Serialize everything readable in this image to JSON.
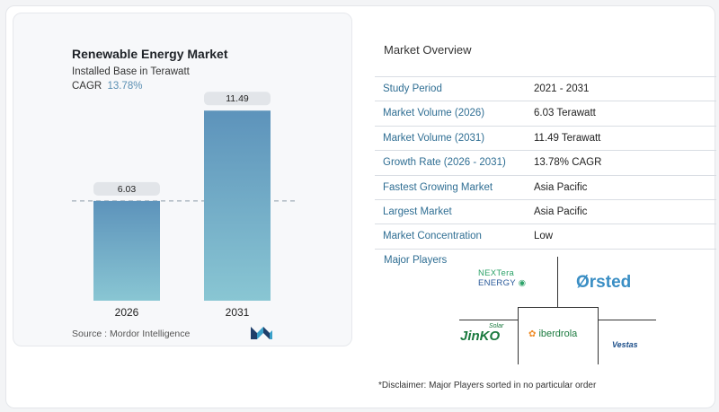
{
  "chart": {
    "title": "Renewable Energy Market",
    "subtitle": "Installed Base in Terawatt",
    "cagr_label": "CAGR",
    "cagr_value": "13.78%",
    "source": "Source :  Mordor Intelligence"
  },
  "chart_data": {
    "type": "bar",
    "title": "Renewable Energy Market",
    "subtitle": "Installed Base in Terawatt",
    "categories": [
      "2026",
      "2031"
    ],
    "values": [
      6.03,
      11.49
    ],
    "value_labels": [
      "6.03",
      "11.49"
    ],
    "ylim": [
      0,
      12.1
    ],
    "reference_line": 6.03,
    "grid": false,
    "colors": {
      "bar_top": "#5d93bb",
      "bar_bottom": "#89c6d3"
    }
  },
  "overview": {
    "title": "Market Overview",
    "rows": [
      {
        "label": "Study Period",
        "value": "2021 - 2031"
      },
      {
        "label": "Market Volume (2026)",
        "value": "6.03 Terawatt"
      },
      {
        "label": "Market Volume (2031)",
        "value": "11.49 Terawatt"
      },
      {
        "label": "Growth Rate (2026 - 2031)",
        "value": "13.78% CAGR"
      },
      {
        "label": "Fastest Growing Market",
        "value": "Asia Pacific"
      },
      {
        "label": "Largest Market",
        "value": "Asia Pacific"
      },
      {
        "label": "Market Concentration",
        "value": "Low"
      }
    ]
  },
  "players": {
    "title": "Major Players",
    "logos": {
      "nextera_line1": "NEXTera",
      "nextera_line2": "ENERGY",
      "orsted": "Ørsted",
      "jinko": "JinKO",
      "jinko_solar": "Solar",
      "iberdrola": "iberdrola",
      "vestas": "Vestas"
    }
  },
  "disclaimer": "*Disclaimer: Major Players sorted in no particular order",
  "colors": {
    "label_blue": "#2f6e93",
    "accent": "#5a8fb3"
  }
}
